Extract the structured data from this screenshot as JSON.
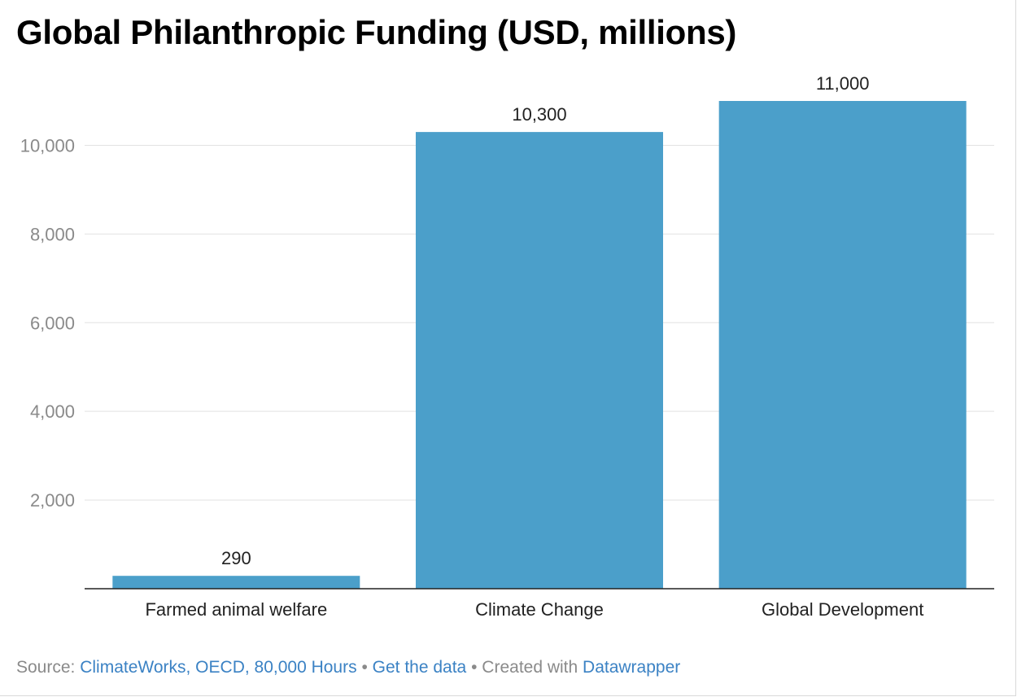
{
  "chart_data": {
    "type": "bar",
    "title": "Global Philanthropic Funding (USD, millions)",
    "xlabel": "",
    "ylabel": "",
    "categories": [
      "Farmed animal welfare",
      "Climate Change",
      "Global Development"
    ],
    "values": [
      290,
      10300,
      11000
    ],
    "value_labels": [
      "290",
      "10,300",
      "11,000"
    ],
    "ylim": [
      0,
      11000
    ],
    "yticks": [
      2000,
      4000,
      6000,
      8000,
      10000
    ],
    "ytick_labels": [
      "2,000",
      "4,000",
      "6,000",
      "8,000",
      "10,000"
    ],
    "grid": true,
    "legend": "none",
    "bar_color": "#4b9fca"
  },
  "footer": {
    "source_prefix": "Source:",
    "source_link": "ClimateWorks, OECD, 80,000 Hours",
    "separator": "•",
    "data_link": "Get the data",
    "created_prefix": "Created with",
    "created_link": "Datawrapper"
  }
}
